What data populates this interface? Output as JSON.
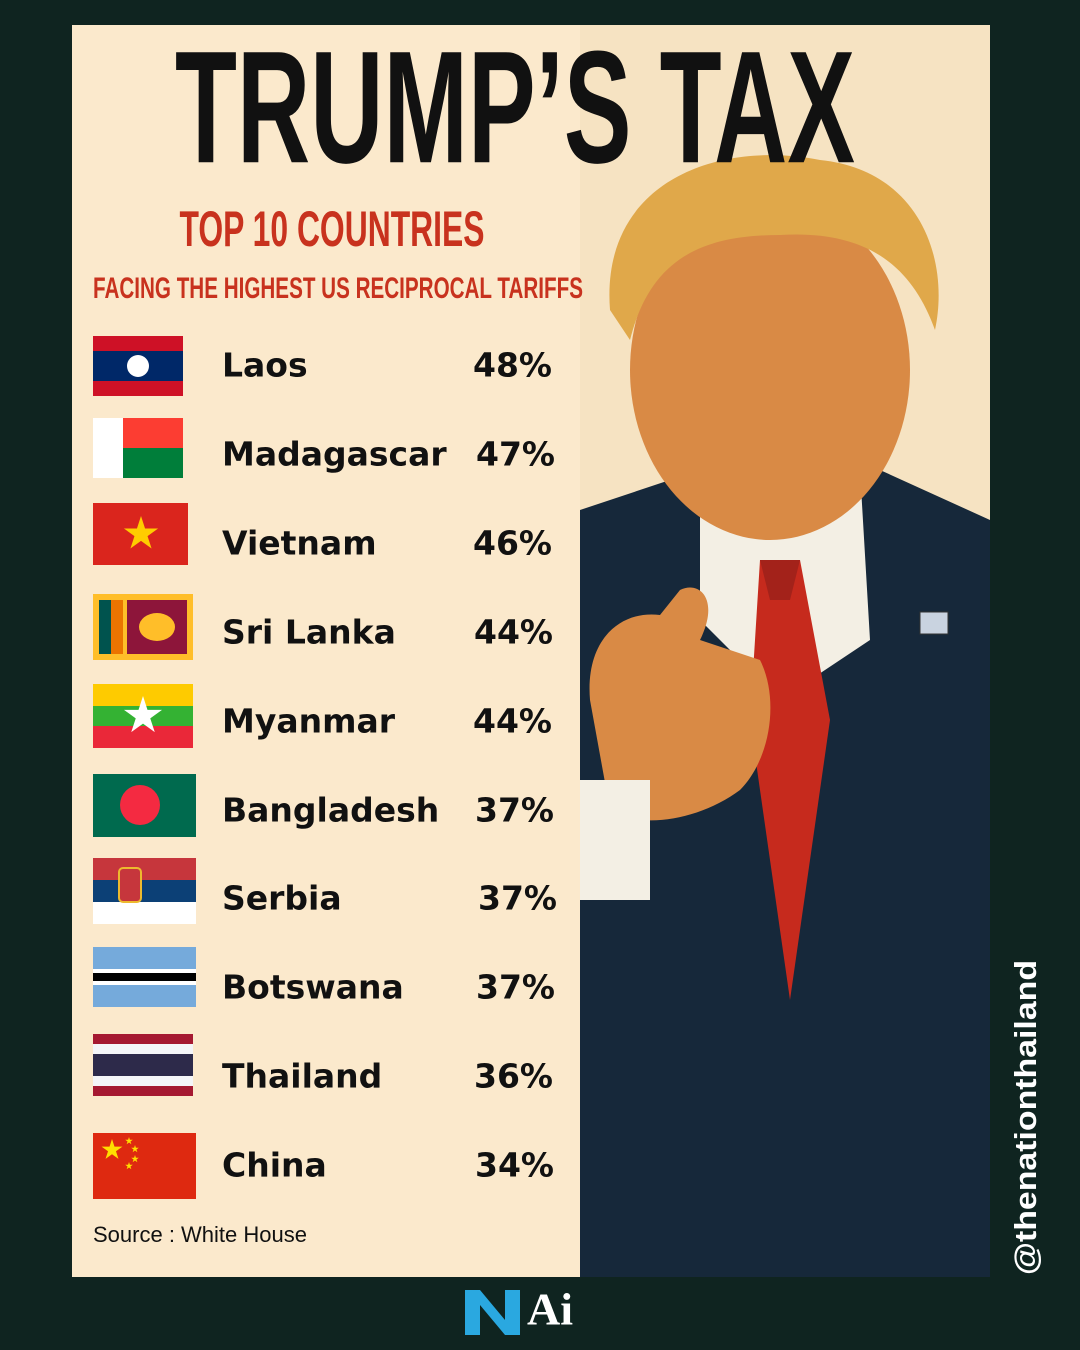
{
  "header": {
    "title": "TRUMP’S TAX",
    "subtitle": "TOP 10 COUNTRIES",
    "tagline": "FACING THE HIGHEST US  RECIPROCAL TARIFFS"
  },
  "rows": [
    {
      "country": "Laos",
      "tariff": "48%"
    },
    {
      "country": "Madagascar",
      "tariff": "47%"
    },
    {
      "country": "Vietnam",
      "tariff": "46%"
    },
    {
      "country": "Sri Lanka",
      "tariff": "44%"
    },
    {
      "country": "Myanmar",
      "tariff": "44%"
    },
    {
      "country": "Bangladesh",
      "tariff": "37%"
    },
    {
      "country": "Serbia",
      "tariff": "37%"
    },
    {
      "country": "Botswana",
      "tariff": "37%"
    },
    {
      "country": "Thailand",
      "tariff": "36%"
    },
    {
      "country": "China",
      "tariff": "34%"
    }
  ],
  "footer": {
    "source": "Source : White House",
    "handle": "@thenationthailand",
    "logo": "Ai"
  }
}
